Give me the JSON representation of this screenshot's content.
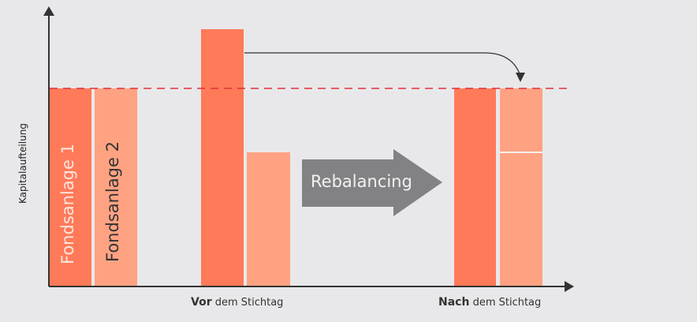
{
  "y_axis_label": "Kapitalaufteilung",
  "legend": {
    "fund1": "Fondsanlage 1",
    "fund2": "Fondsanlage 2"
  },
  "x_labels": {
    "before_bold": "Vor",
    "before_rest": " dem Stichtag",
    "after_bold": "Nach",
    "after_rest": " dem Stichtag"
  },
  "process_arrow_label": "Rebalancing",
  "colors": {
    "fund1": "#ff7a58",
    "fund2": "#ffa282",
    "target_line": "#e0303a",
    "process_arrow": "#828284",
    "axis": "#333333",
    "background": "#e8e8ea"
  }
}
